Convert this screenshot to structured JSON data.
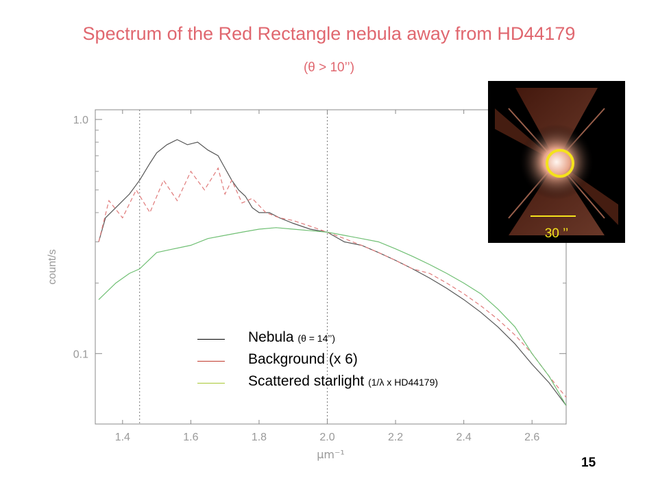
{
  "slide": {
    "title": "Spectrum of the Red Rectangle nebula away from HD44179",
    "subtitle": "(θ > 10’’)",
    "page_number": "15"
  },
  "legend": {
    "items": [
      {
        "label": "Nebula",
        "note": "(θ = 14’’)",
        "color": "#000000"
      },
      {
        "label": "Background (x 6)",
        "note": "",
        "color": "#c0392b"
      },
      {
        "label": "Scattered starlight",
        "note": "(1/λ x HD44179)",
        "color": "#a8c832"
      }
    ]
  },
  "inset": {
    "scale_label": "30 ’’",
    "circle_color": "#f4e21c"
  },
  "chart_data": {
    "type": "line",
    "xlabel": "μm⁻¹",
    "ylabel": "count/s",
    "xlim": [
      1.32,
      2.7
    ],
    "ylim": [
      0.05,
      1.1
    ],
    "yscale": "log",
    "xticks": [
      "1.4",
      "1.6",
      "1.8",
      "2.0",
      "2.2",
      "2.4",
      "2.6"
    ],
    "yticks": [
      "1.0",
      "0.1"
    ],
    "vlines": [
      1.45,
      2.0
    ],
    "series": [
      {
        "name": "Nebula",
        "style": "solid",
        "color": "#555555",
        "x": [
          1.33,
          1.35,
          1.38,
          1.42,
          1.45,
          1.48,
          1.5,
          1.53,
          1.56,
          1.59,
          1.62,
          1.65,
          1.68,
          1.7,
          1.72,
          1.74,
          1.76,
          1.78,
          1.8,
          1.83,
          1.86,
          1.9,
          1.95,
          2.0,
          2.05,
          2.1,
          2.15,
          2.2,
          2.25,
          2.3,
          2.35,
          2.4,
          2.45,
          2.5,
          2.55,
          2.6,
          2.65,
          2.7
        ],
        "y": [
          0.3,
          0.38,
          0.42,
          0.48,
          0.55,
          0.65,
          0.72,
          0.78,
          0.82,
          0.78,
          0.8,
          0.74,
          0.7,
          0.62,
          0.55,
          0.5,
          0.47,
          0.42,
          0.4,
          0.4,
          0.38,
          0.36,
          0.34,
          0.33,
          0.3,
          0.29,
          0.27,
          0.25,
          0.23,
          0.21,
          0.19,
          0.17,
          0.15,
          0.13,
          0.11,
          0.09,
          0.075,
          0.06
        ]
      },
      {
        "name": "Background (x 6)",
        "style": "dashed",
        "color": "#e07a7a",
        "x": [
          1.33,
          1.36,
          1.4,
          1.44,
          1.48,
          1.52,
          1.56,
          1.6,
          1.64,
          1.68,
          1.7,
          1.72,
          1.75,
          1.78,
          1.82,
          1.86,
          1.9,
          1.95,
          2.0,
          2.05,
          2.1,
          2.15,
          2.2,
          2.25,
          2.3,
          2.35,
          2.4,
          2.45,
          2.5,
          2.55,
          2.6,
          2.65,
          2.7
        ],
        "y": [
          0.3,
          0.45,
          0.38,
          0.5,
          0.4,
          0.55,
          0.45,
          0.6,
          0.5,
          0.62,
          0.48,
          0.55,
          0.44,
          0.46,
          0.4,
          0.38,
          0.37,
          0.35,
          0.33,
          0.31,
          0.29,
          0.27,
          0.25,
          0.23,
          0.22,
          0.2,
          0.18,
          0.16,
          0.14,
          0.12,
          0.1,
          0.08,
          0.065
        ]
      },
      {
        "name": "Scattered starlight",
        "style": "solid",
        "color": "#6fbf73",
        "x": [
          1.33,
          1.38,
          1.42,
          1.45,
          1.5,
          1.55,
          1.6,
          1.65,
          1.7,
          1.75,
          1.8,
          1.85,
          1.9,
          1.95,
          2.0,
          2.05,
          2.1,
          2.15,
          2.2,
          2.25,
          2.3,
          2.35,
          2.4,
          2.45,
          2.5,
          2.55,
          2.6,
          2.65,
          2.7
        ],
        "y": [
          0.17,
          0.2,
          0.22,
          0.23,
          0.27,
          0.28,
          0.29,
          0.31,
          0.32,
          0.33,
          0.34,
          0.345,
          0.34,
          0.335,
          0.33,
          0.32,
          0.31,
          0.3,
          0.28,
          0.26,
          0.24,
          0.22,
          0.2,
          0.18,
          0.155,
          0.13,
          0.1,
          0.08,
          0.06
        ]
      }
    ]
  }
}
